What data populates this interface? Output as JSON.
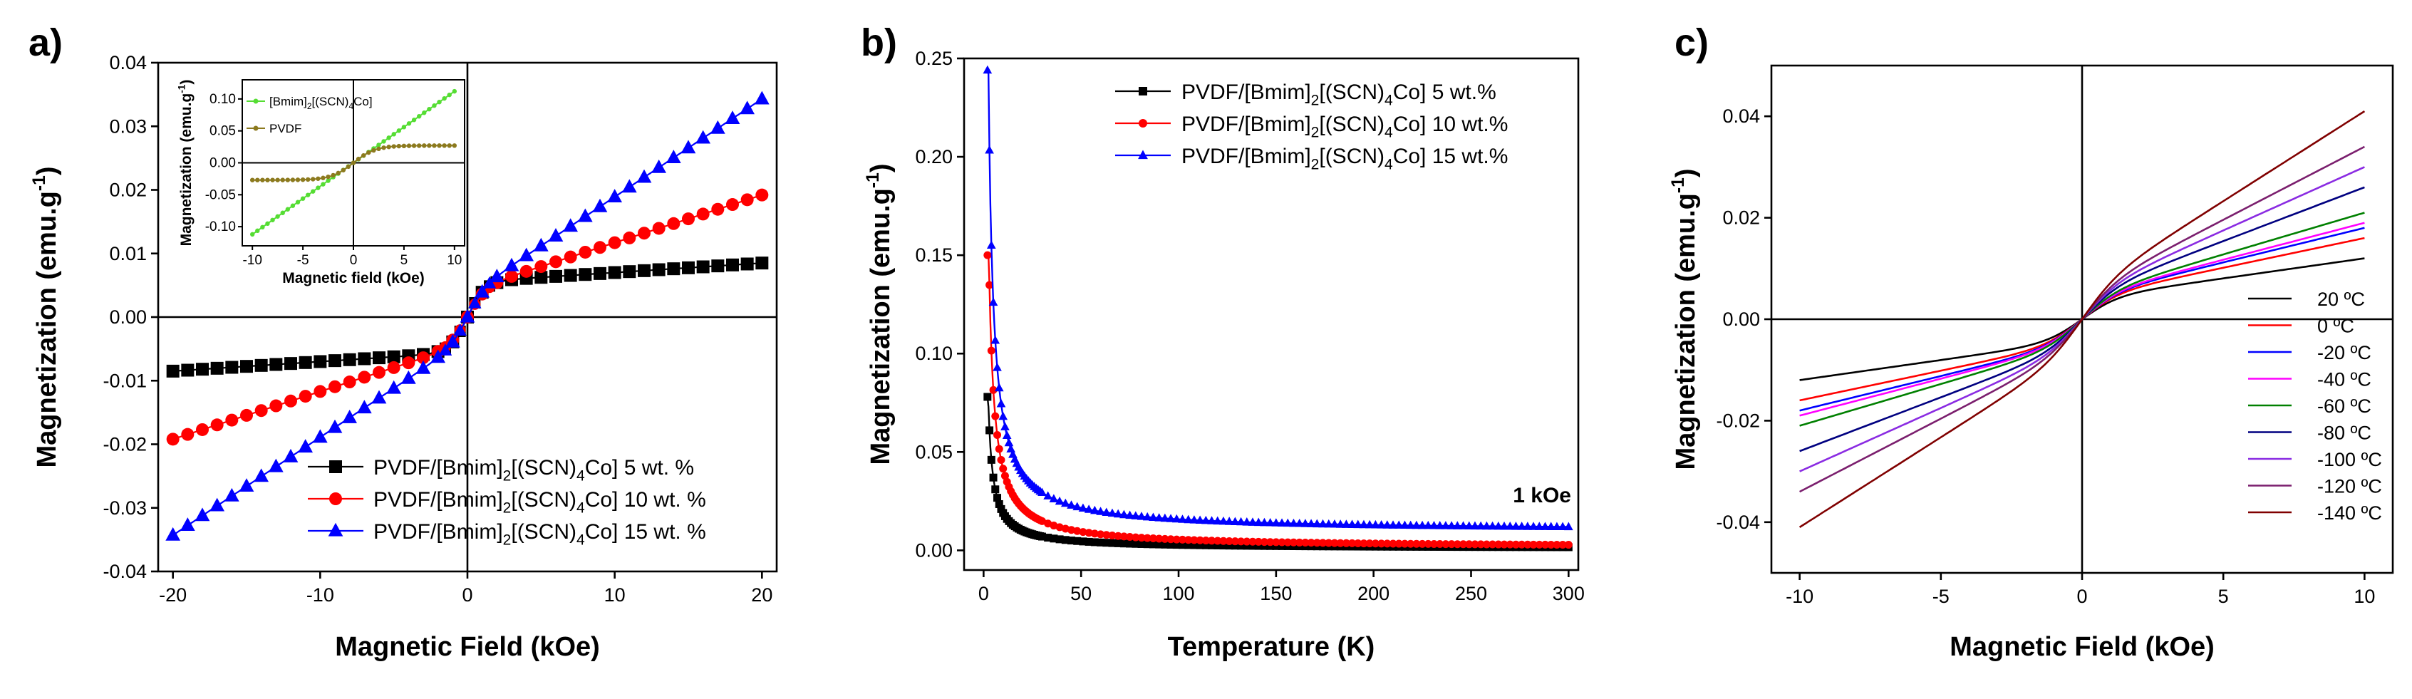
{
  "chart_data": [
    {
      "panel": "a)",
      "type": "line",
      "xlabel": "Magnetic Field (kOe)",
      "ylabel": "Magnetization (emu.g^-1)",
      "xlim": [
        -21,
        21
      ],
      "ylim": [
        -0.04,
        0.04
      ],
      "xticks": [
        "-20",
        "-10",
        "0",
        "10",
        "20"
      ],
      "yticks": [
        "-0.04",
        "-0.03",
        "-0.02",
        "-0.01",
        "0.00",
        "0.01",
        "0.02",
        "0.03",
        "0.04"
      ],
      "series": [
        {
          "name": "PVDF/[Bmim]2[(SCN)4Co] 5 wt. %",
          "legend_main": "PVDF/[Bmim]",
          "legend_sub1": "2",
          "legend_mid": "[(SCN)",
          "legend_sub2": "4",
          "legend_tail": "Co] 5 wt. %",
          "color": "#000000",
          "marker": "square",
          "msat": 0.0055,
          "slope": 0.00015
        },
        {
          "name": "PVDF/[Bmim]2[(SCN)4Co] 10 wt. %",
          "legend_main": "PVDF/[Bmim]",
          "legend_sub1": "2",
          "legend_mid": "[(SCN)",
          "legend_sub2": "4",
          "legend_tail": "Co] 10 wt. %",
          "color": "#ff0000",
          "marker": "circle",
          "msat": 0.0042,
          "slope": 0.00075
        },
        {
          "name": "PVDF/[Bmim]2[(SCN)4Co] 15 wt. %",
          "legend_main": "PVDF/[Bmim]",
          "legend_sub1": "2",
          "legend_mid": "[(SCN)",
          "legend_sub2": "4",
          "legend_tail": "Co] 15 wt. %",
          "color": "#0000ff",
          "marker": "triangle",
          "msat": 0.0035,
          "slope": 0.00154
        }
      ],
      "inset": {
        "xlabel": "Magnetic field (kOe)",
        "ylabel": "Magnetization (emu.g^-1)",
        "xlim": [
          -11,
          11
        ],
        "ylim": [
          -0.13,
          0.13
        ],
        "xticks": [
          "-10",
          "-5",
          "0",
          "5",
          "10"
        ],
        "yticks": [
          "-0.10",
          "-0.05",
          "0.00",
          "0.05",
          "0.10"
        ],
        "series": [
          {
            "name": "[Bmim]2[(SCN)4]Co",
            "legend_main": "[Bmim]",
            "legend_sub1": "2",
            "legend_mid": "[(SCN)",
            "legend_sub2": "4",
            "legend_tail": "Co]",
            "color": "#55dd33",
            "kind": "linear",
            "slope": 0.0112
          },
          {
            "name": "PVDF",
            "legend_main": "PVDF",
            "color": "#8c7a1e",
            "kind": "saturation",
            "msat": 0.027
          }
        ]
      }
    },
    {
      "panel": "b)",
      "type": "line",
      "xlabel": "Temperature (K)",
      "ylabel": "Magnetization (emu.g^-1)",
      "xlim": [
        -10,
        305
      ],
      "ylim": [
        -0.01,
        0.25
      ],
      "xticks": [
        "0",
        "50",
        "100",
        "150",
        "200",
        "250",
        "300"
      ],
      "yticks": [
        "0.00",
        "0.05",
        "0.10",
        "0.15",
        "0.20",
        "0.25"
      ],
      "annotation": "1 kOe",
      "series": [
        {
          "name": "PVDF/[Bmim]2[(SCN)4Co] 5 wt.%",
          "legend_main": "PVDF/[Bmim]",
          "legend_sub1": "2",
          "legend_mid": "[(SCN)",
          "legend_sub2": "4",
          "legend_tail": "Co] 5 wt.%",
          "color": "#000000",
          "marker": "square",
          "c": 0.18,
          "offset": 0.001,
          "start": 0.078
        },
        {
          "name": "PVDF/[Bmim]2[(SCN)4Co] 10 wt.%",
          "legend_main": "PVDF/[Bmim]",
          "legend_sub1": "2",
          "legend_mid": "[(SCN)",
          "legend_sub2": "4",
          "legend_tail": "Co] 10 wt.%",
          "color": "#ff0000",
          "marker": "circle",
          "c": 0.4,
          "offset": 0.0015,
          "start": 0.15
        },
        {
          "name": "PVDF/[Bmim]2[(SCN)4Co] 15 wt.%",
          "legend_main": "PVDF/[Bmim]",
          "legend_sub1": "2",
          "legend_mid": "[(SCN)",
          "legend_sub2": "4",
          "legend_tail": "Co] 15 wt.%",
          "color": "#0000ff",
          "marker": "triangle",
          "c": 0.58,
          "offset": 0.01,
          "start": 0.244
        }
      ]
    },
    {
      "panel": "c)",
      "type": "line",
      "xlabel": "Magnetic Field (kOe)",
      "ylabel": "Magnetization (emu.g^-1)",
      "xlim": [
        -11,
        11
      ],
      "ylim": [
        -0.05,
        0.05
      ],
      "xticks": [
        "-10",
        "-5",
        "0",
        "5",
        "10"
      ],
      "yticks": [
        "-0.04",
        "-0.02",
        "0.00",
        "0.02",
        "0.04"
      ],
      "series": [
        {
          "name": "20 ºC",
          "color": "#000000",
          "end": 0.012
        },
        {
          "name": "0 ºC",
          "color": "#ff0000",
          "end": 0.016
        },
        {
          "name": "-20 ºC",
          "color": "#0000ff",
          "end": 0.018
        },
        {
          "name": "-40 ºC",
          "color": "#ff00ff",
          "end": 0.019
        },
        {
          "name": "-60 ºC",
          "color": "#008000",
          "end": 0.021
        },
        {
          "name": "-80 ºC",
          "color": "#000080",
          "end": 0.026
        },
        {
          "name": "-100 ºC",
          "color": "#8a2be2",
          "end": 0.03
        },
        {
          "name": "-120 ºC",
          "color": "#7b1f6e",
          "end": 0.034
        },
        {
          "name": "-140 ºC",
          "color": "#800000",
          "end": 0.041
        }
      ]
    }
  ]
}
